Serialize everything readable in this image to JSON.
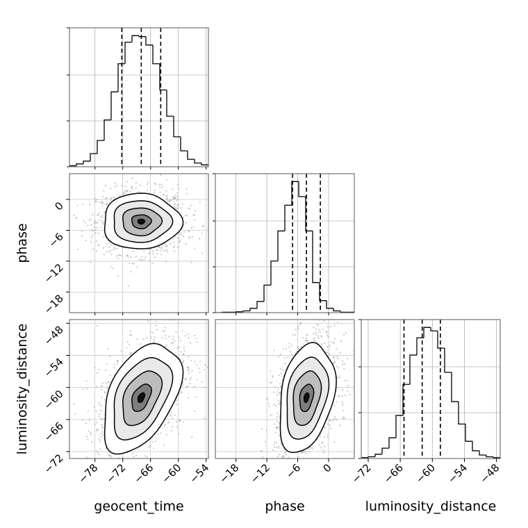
{
  "chart_data": {
    "type": "corner",
    "parameters": [
      "geocent_time",
      "phase",
      "luminosity_distance"
    ],
    "axis_labels": {
      "geocent_time": "geocent_time",
      "phase": "phase",
      "luminosity_distance": "luminosity_distance"
    },
    "ranges": {
      "geocent_time": [
        -83.5,
        -53.5
      ],
      "phase": [
        -22.0,
        5.0
      ],
      "luminosity_distance": [
        -73.3,
        -47.3
      ]
    },
    "ticks": {
      "geocent_time": {
        "values": [
          -78,
          -72,
          -66,
          -60,
          -54
        ],
        "labels": [
          "−78",
          "−72",
          "−66",
          "−60",
          "−54"
        ]
      },
      "phase": {
        "values": [
          -18,
          -12,
          -6,
          0
        ],
        "labels": [
          "−18",
          "−12",
          "−6",
          "0"
        ]
      },
      "luminosity_distance": {
        "values": [
          -72,
          -66,
          -60,
          -54,
          -48
        ],
        "labels": [
          "−72",
          "−66",
          "−60",
          "−54",
          "−48"
        ]
      }
    },
    "grid": true,
    "histograms": [
      {
        "parameter": "geocent_time",
        "bins": 20,
        "counts": [
          1,
          3,
          6,
          14,
          28,
          50,
          80,
          110,
          133,
          140,
          139,
          130,
          110,
          82,
          54,
          32,
          17,
          8,
          4,
          2
        ],
        "quantiles": [
          -72.2,
          -68.0,
          -63.8
        ]
      },
      {
        "parameter": "phase",
        "bins": 20,
        "counts": [
          0,
          1,
          1,
          2,
          4,
          10,
          26,
          64,
          120,
          190,
          250,
          305,
          270,
          190,
          70,
          28,
          10,
          4,
          1,
          1
        ],
        "quantiles": [
          -7.0,
          -4.3,
          -1.6
        ]
      },
      {
        "parameter": "luminosity_distance",
        "bins": 20,
        "counts": [
          1,
          2,
          5,
          12,
          24,
          50,
          86,
          120,
          140,
          152,
          148,
          128,
          100,
          66,
          40,
          20,
          9,
          4,
          2,
          1
        ],
        "quantiles": [
          -65.3,
          -61.9,
          -58.5
        ]
      }
    ],
    "density_2d": [
      {
        "x": "geocent_time",
        "y": "phase",
        "center": [
          -68.0,
          -4.3
        ],
        "sigma": [
          4.2,
          2.7
        ],
        "rho": 0.0
      },
      {
        "x": "geocent_time",
        "y": "luminosity_distance",
        "center": [
          -68.0,
          -61.9
        ],
        "sigma": [
          4.2,
          5.1
        ],
        "rho": 0.45
      },
      {
        "x": "phase",
        "y": "luminosity_distance",
        "center": [
          -4.3,
          -61.9
        ],
        "sigma": [
          2.7,
          5.1
        ],
        "rho": 0.3
      }
    ]
  }
}
